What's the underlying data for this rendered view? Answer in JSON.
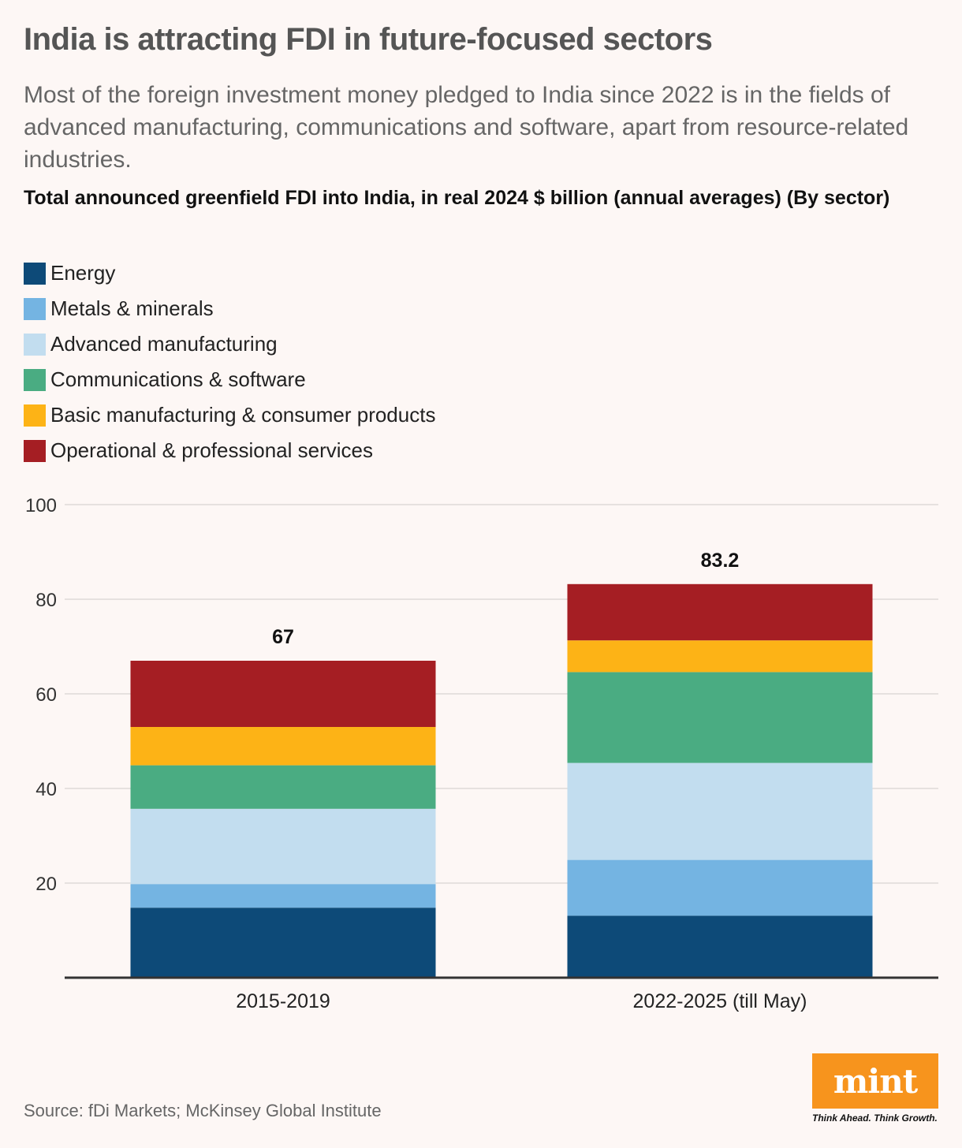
{
  "header": {
    "title": "India is attracting FDI in future-focused sectors",
    "subtitle": "Most of the foreign investment money pledged to India since 2022 is in the fields of advanced manufacturing, communications and software, apart from resource-related industries."
  },
  "chart_data": {
    "type": "bar",
    "stacked": true,
    "title": "Total announced greenfield FDI into India, in real 2024 $ billion (annual averages) (By sector)",
    "xlabel": "",
    "ylabel": "",
    "ylim": [
      0,
      100
    ],
    "yticks": [
      20,
      40,
      60,
      80,
      100
    ],
    "grid": true,
    "legend_position": "top-left",
    "categories": [
      "2015-2019",
      "2022-2025 (till May)"
    ],
    "totals": [
      67,
      83.2
    ],
    "total_labels": [
      "67",
      "83.2"
    ],
    "series": [
      {
        "name": "Energy",
        "color": "#0d4a78",
        "values": [
          14.8,
          13.1
        ]
      },
      {
        "name": "Metals & minerals",
        "color": "#74b4e2",
        "values": [
          5.0,
          11.8
        ]
      },
      {
        "name": "Advanced manufacturing",
        "color": "#c2ddef",
        "values": [
          15.9,
          20.5
        ]
      },
      {
        "name": "Communications & software",
        "color": "#4aac82",
        "values": [
          9.2,
          19.2
        ]
      },
      {
        "name": "Basic manufacturing & consumer products",
        "color": "#fdb316",
        "values": [
          8.1,
          6.7
        ]
      },
      {
        "name": "Operational & professional services",
        "color": "#a51e23",
        "values": [
          14.0,
          11.9
        ]
      }
    ]
  },
  "footer": {
    "source": "Source: fDi Markets; McKinsey Global Institute",
    "brand_name": "mint",
    "brand_tagline": "Think Ahead. Think Growth.",
    "brand_color": "#f7941d"
  }
}
